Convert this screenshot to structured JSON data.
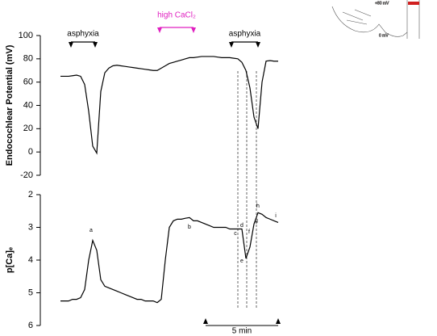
{
  "chart_data": [
    {
      "type": "line",
      "y_label": "Endocochlear Potential (mV)",
      "color": "#000000",
      "ylim": [
        -20,
        100
      ],
      "yticks": [
        -20,
        0,
        20,
        40,
        60,
        80,
        100
      ],
      "values": [
        65,
        65,
        65,
        65.5,
        66,
        65,
        58,
        35,
        5,
        -1,
        52,
        68,
        72,
        74,
        74.5,
        74,
        73.5,
        73,
        72.5,
        72,
        71.5,
        71,
        70.5,
        70,
        70,
        72,
        74,
        76,
        77,
        78,
        79,
        80,
        81,
        81,
        81.5,
        82,
        82,
        82,
        82,
        81.5,
        81,
        81,
        81,
        80.5,
        80,
        77,
        70,
        55,
        30,
        20,
        60,
        78,
        78.5,
        78,
        78
      ],
      "events": [
        {
          "label": "asphyxia",
          "color": "#000000"
        },
        {
          "label": "high CaCl₂",
          "color": "#e020c0"
        },
        {
          "label": "asphyxia",
          "color": "#000000"
        }
      ]
    },
    {
      "type": "line",
      "y_label": "p[Ca]ₑ",
      "color": "#000000",
      "ylim": [
        6,
        2
      ],
      "yticks": [
        2,
        3,
        4,
        5,
        6
      ],
      "values": [
        5.25,
        5.25,
        5.25,
        5.2,
        5.2,
        5.15,
        4.9,
        4.0,
        3.4,
        3.7,
        4.6,
        4.8,
        4.85,
        4.9,
        4.95,
        5.0,
        5.05,
        5.1,
        5.15,
        5.2,
        5.2,
        5.25,
        5.25,
        5.25,
        5.3,
        5.2,
        4.0,
        3.0,
        2.8,
        2.75,
        2.75,
        2.72,
        2.7,
        2.8,
        2.8,
        2.85,
        2.9,
        2.95,
        3.0,
        3.0,
        3.0,
        3.0,
        3.05,
        3.05,
        3.05,
        3.05,
        3.95,
        3.6,
        2.9,
        2.55,
        2.6,
        2.7,
        2.75,
        2.8,
        2.85
      ],
      "annotations": [
        "a",
        "b",
        "c",
        "d",
        "e",
        "f",
        "g",
        "h",
        "i"
      ]
    }
  ],
  "scale_bar": "5 min",
  "inset": {
    "labels": [
      "+80 mV",
      "0 mV"
    ]
  }
}
